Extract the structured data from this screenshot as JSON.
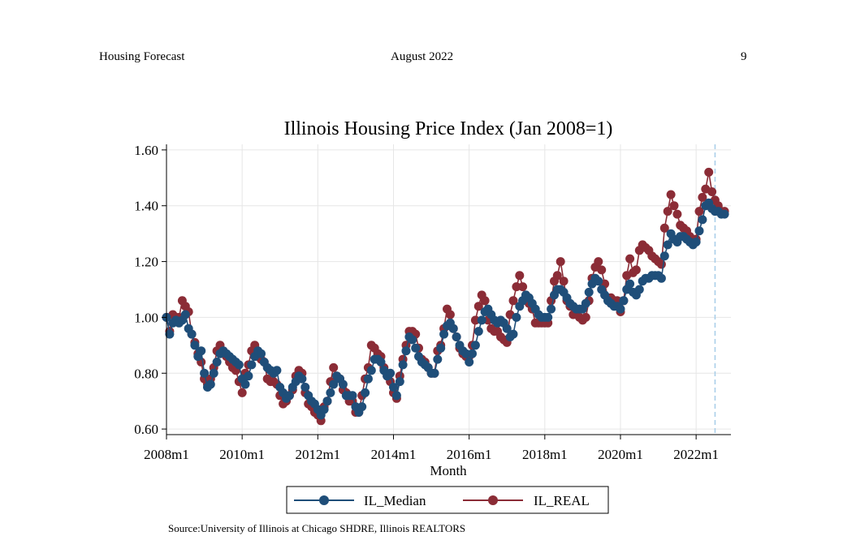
{
  "header": {
    "left": "Housing Forecast",
    "center": "August 2022",
    "page_number": "9"
  },
  "source": "Source:University of Illinois at Chicago SHDRE, Illinois REALTORS",
  "colors": {
    "median": "#1f4e79",
    "real": "#8b2c36",
    "grid": "#e6e6e6",
    "vline": "#a7cde8"
  },
  "chart_data": {
    "type": "line",
    "title": "Illinois Housing Price Index (Jan 2008=1)",
    "xlabel": "Month",
    "ylabel": "",
    "x_start": "2008m1",
    "xlim": [
      2008.0,
      2022.92
    ],
    "ylim": [
      0.58,
      1.62
    ],
    "x_ticks": [
      {
        "value": 2008,
        "label": "2008m1"
      },
      {
        "value": 2010,
        "label": "2010m1"
      },
      {
        "value": 2012,
        "label": "2012m1"
      },
      {
        "value": 2014,
        "label": "2014m1"
      },
      {
        "value": 2016,
        "label": "2016m1"
      },
      {
        "value": 2018,
        "label": "2018m1"
      },
      {
        "value": 2020,
        "label": "2020m1"
      },
      {
        "value": 2022,
        "label": "2022m1"
      }
    ],
    "y_ticks": [
      {
        "value": 0.6,
        "label": "0.60"
      },
      {
        "value": 0.8,
        "label": "0.80"
      },
      {
        "value": 1.0,
        "label": "1.00"
      },
      {
        "value": 1.2,
        "label": "1.20"
      },
      {
        "value": 1.4,
        "label": "1.40"
      },
      {
        "value": 1.6,
        "label": "1.60"
      }
    ],
    "reference_line_x": 2022.5,
    "legend": [
      "IL_Median",
      "IL_REAL"
    ],
    "legend_position": "bottom",
    "series": [
      {
        "name": "IL_Median",
        "color_key": "median",
        "values": [
          1.0,
          0.94,
          0.98,
          0.99,
          0.98,
          0.99,
          1.01,
          0.96,
          0.94,
          0.9,
          0.86,
          0.88,
          0.8,
          0.75,
          0.76,
          0.8,
          0.84,
          0.87,
          0.88,
          0.87,
          0.86,
          0.85,
          0.84,
          0.83,
          0.78,
          0.76,
          0.79,
          0.83,
          0.86,
          0.88,
          0.87,
          0.84,
          0.82,
          0.81,
          0.8,
          0.81,
          0.75,
          0.73,
          0.71,
          0.72,
          0.75,
          0.77,
          0.79,
          0.78,
          0.75,
          0.72,
          0.7,
          0.69,
          0.67,
          0.65,
          0.67,
          0.7,
          0.73,
          0.76,
          0.79,
          0.78,
          0.76,
          0.72,
          0.72,
          0.72,
          0.68,
          0.66,
          0.68,
          0.73,
          0.78,
          0.81,
          0.85,
          0.85,
          0.84,
          0.81,
          0.79,
          0.8,
          0.75,
          0.72,
          0.77,
          0.83,
          0.88,
          0.93,
          0.92,
          0.89,
          0.86,
          0.84,
          0.83,
          0.82,
          0.8,
          0.8,
          0.85,
          0.89,
          0.94,
          0.97,
          0.98,
          0.96,
          0.93,
          0.9,
          0.88,
          0.87,
          0.84,
          0.87,
          0.9,
          0.95,
          0.99,
          1.02,
          1.03,
          1.01,
          0.99,
          0.98,
          0.99,
          0.98,
          0.96,
          0.93,
          0.94,
          1.0,
          1.04,
          1.06,
          1.08,
          1.07,
          1.05,
          1.03,
          1.01,
          1.0,
          1.0,
          1.0,
          1.03,
          1.08,
          1.1,
          1.1,
          1.09,
          1.07,
          1.05,
          1.04,
          1.03,
          1.03,
          1.03,
          1.05,
          1.09,
          1.12,
          1.14,
          1.13,
          1.1,
          1.08,
          1.06,
          1.05,
          1.04,
          1.04,
          1.03,
          1.06,
          1.1,
          1.12,
          1.09,
          1.08,
          1.1,
          1.13,
          1.14,
          1.14,
          1.15,
          1.15,
          1.15,
          1.14,
          1.22,
          1.26,
          1.3,
          1.28,
          1.27,
          1.29,
          1.29,
          1.28,
          1.27,
          1.26,
          1.27,
          1.31,
          1.35,
          1.4,
          1.41,
          1.39,
          1.38,
          1.38,
          1.37,
          1.37
        ]
      },
      {
        "name": "IL_REAL",
        "color_key": "real",
        "values": [
          1.0,
          0.95,
          1.01,
          1.0,
          1.0,
          1.06,
          1.04,
          1.02,
          0.94,
          0.91,
          0.87,
          0.84,
          0.78,
          0.76,
          0.78,
          0.82,
          0.88,
          0.9,
          0.88,
          0.86,
          0.84,
          0.82,
          0.81,
          0.77,
          0.73,
          0.8,
          0.83,
          0.88,
          0.9,
          0.86,
          0.85,
          0.84,
          0.78,
          0.77,
          0.77,
          0.76,
          0.72,
          0.69,
          0.7,
          0.72,
          0.74,
          0.79,
          0.81,
          0.8,
          0.73,
          0.69,
          0.68,
          0.66,
          0.65,
          0.63,
          0.68,
          0.7,
          0.77,
          0.82,
          0.79,
          0.78,
          0.74,
          0.73,
          0.7,
          0.7,
          0.66,
          0.66,
          0.72,
          0.78,
          0.82,
          0.9,
          0.89,
          0.87,
          0.86,
          0.82,
          0.79,
          0.77,
          0.73,
          0.71,
          0.79,
          0.85,
          0.9,
          0.95,
          0.95,
          0.94,
          0.89,
          0.85,
          0.84,
          0.82,
          0.8,
          0.8,
          0.88,
          0.9,
          0.96,
          1.03,
          1.01,
          0.96,
          0.93,
          0.89,
          0.87,
          0.86,
          0.86,
          0.9,
          0.99,
          1.04,
          1.08,
          1.06,
          0.99,
          0.96,
          0.95,
          0.95,
          0.93,
          0.92,
          0.91,
          1.01,
          1.06,
          1.11,
          1.15,
          1.11,
          1.08,
          1.05,
          1.03,
          0.98,
          0.98,
          0.98,
          0.98,
          0.98,
          1.06,
          1.13,
          1.15,
          1.2,
          1.13,
          1.06,
          1.04,
          1.01,
          1.02,
          1.0,
          0.99,
          1.0,
          1.06,
          1.14,
          1.18,
          1.2,
          1.17,
          1.12,
          1.07,
          1.07,
          1.06,
          1.06,
          1.02,
          1.06,
          1.15,
          1.21,
          1.16,
          1.17,
          1.24,
          1.26,
          1.25,
          1.24,
          1.22,
          1.21,
          1.2,
          1.19,
          1.32,
          1.38,
          1.44,
          1.4,
          1.37,
          1.33,
          1.32,
          1.31,
          1.29,
          1.27,
          1.28,
          1.38,
          1.43,
          1.46,
          1.52,
          1.45,
          1.42,
          1.4,
          1.38,
          1.38
        ]
      }
    ]
  }
}
